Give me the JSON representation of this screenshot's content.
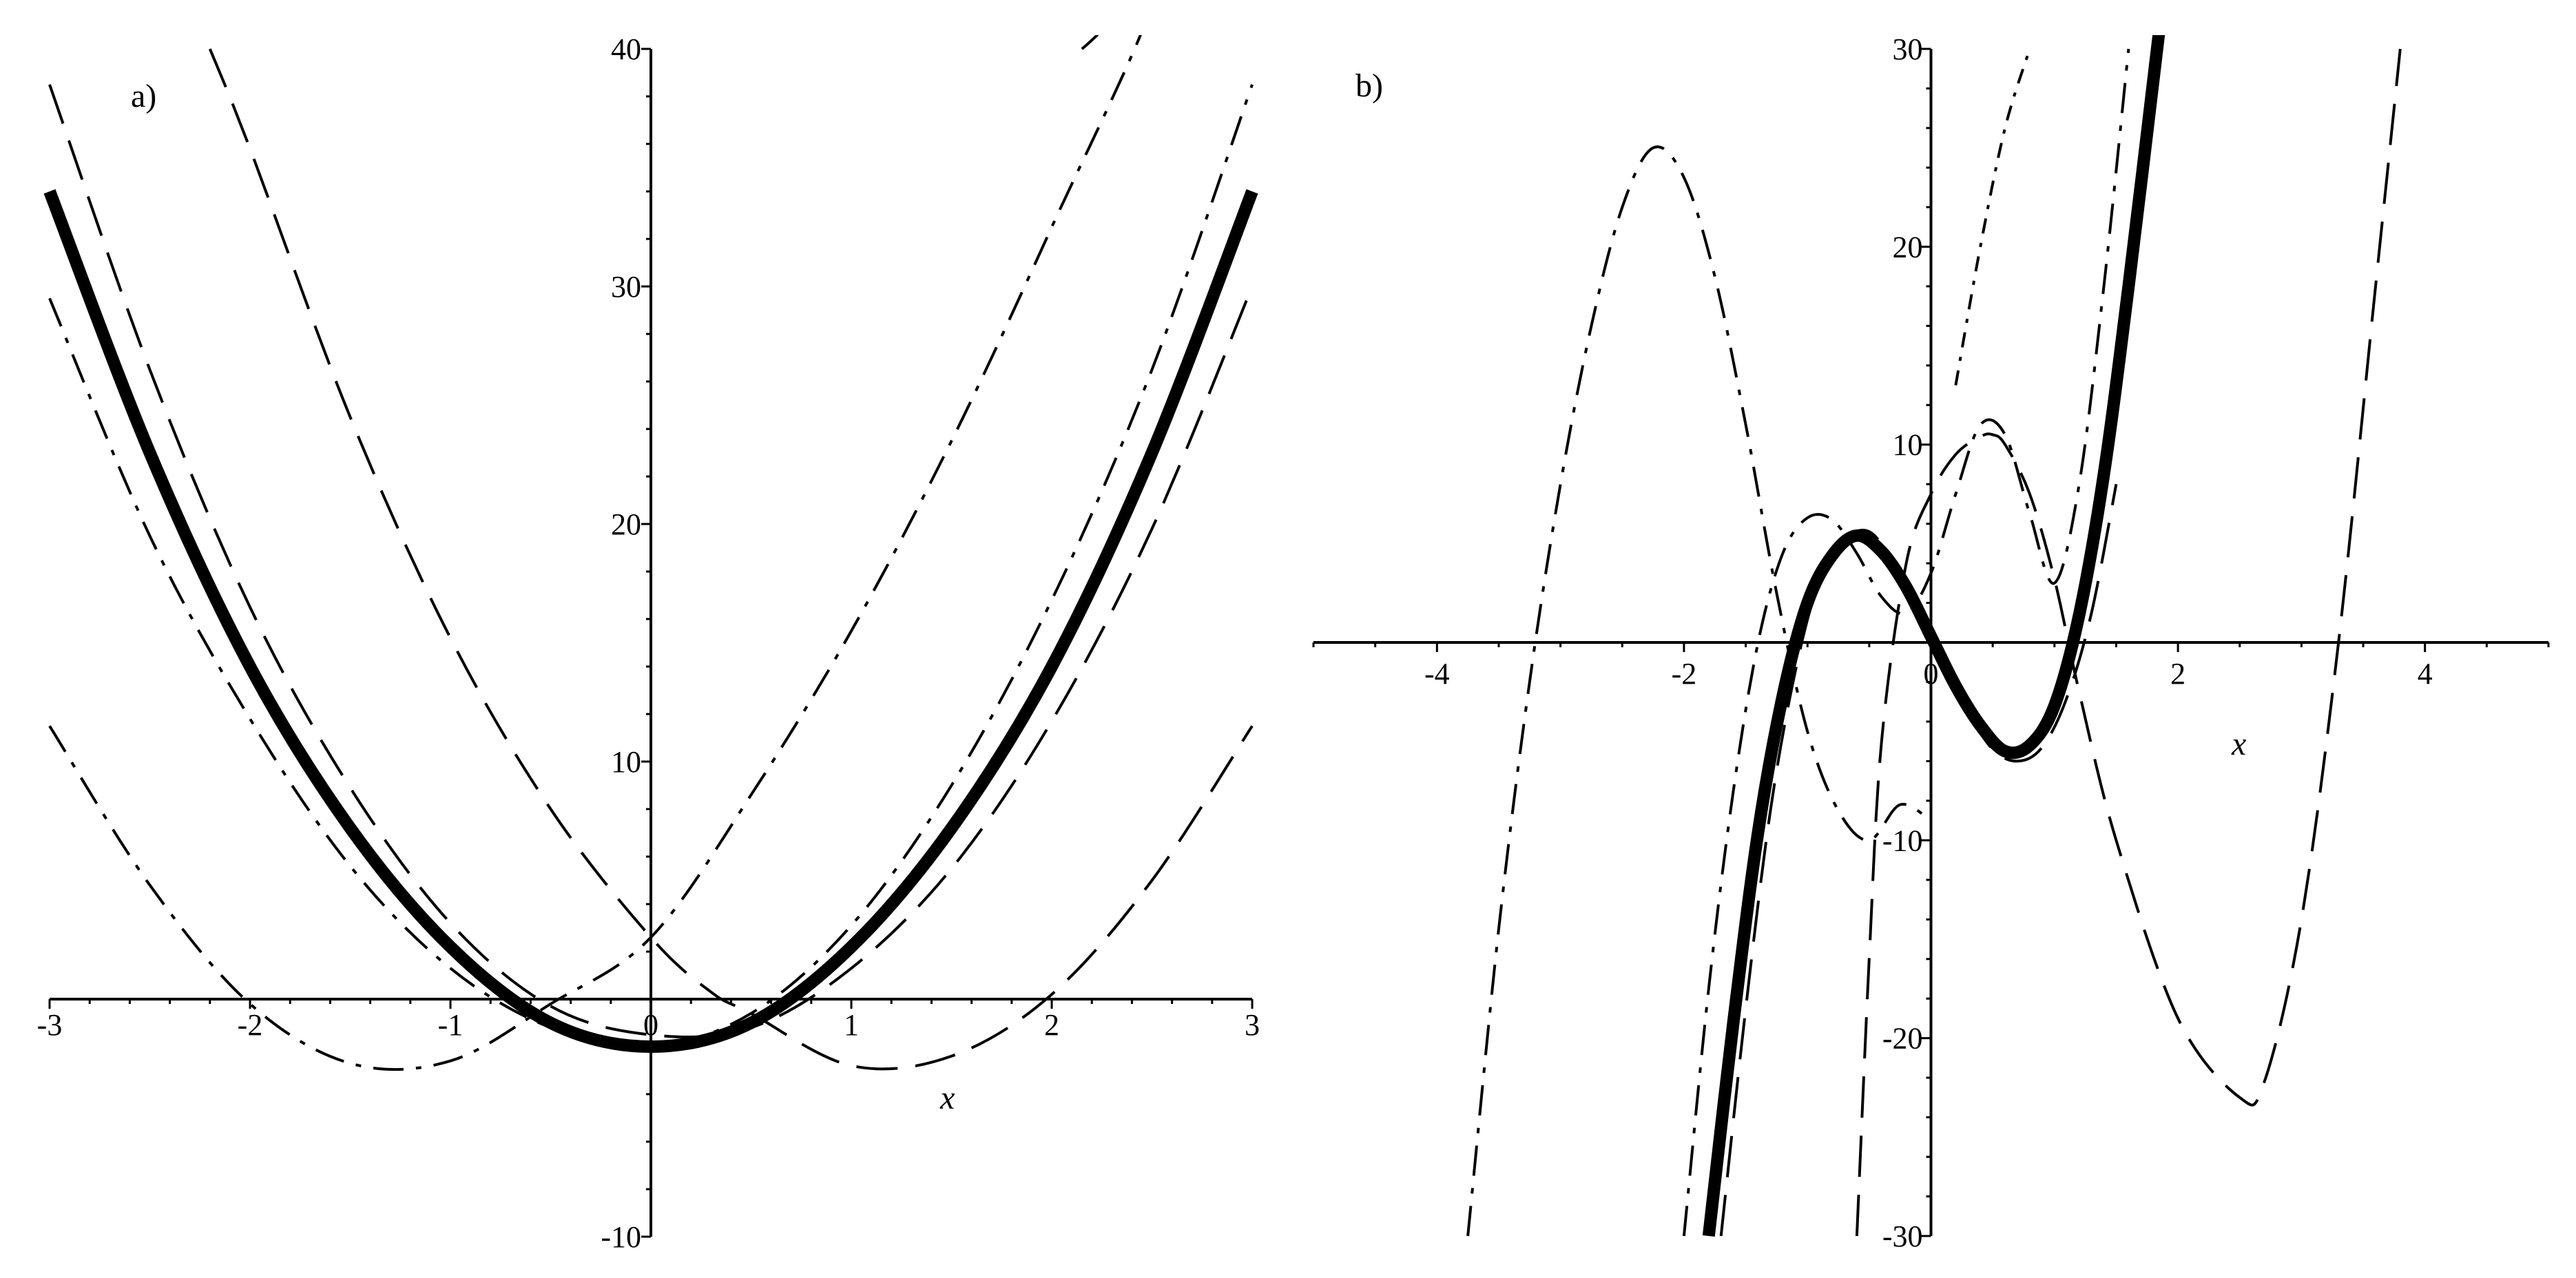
{
  "chart_data": [
    {
      "type": "line",
      "panel_label": "a)",
      "xlabel": "x",
      "ylabel": "",
      "xlim": [
        -3,
        3
      ],
      "ylim": [
        -10,
        40
      ],
      "x_ticks": [
        -3,
        -2,
        -1,
        0,
        1,
        2,
        3
      ],
      "x_tick_labels": [
        "-3",
        "-2",
        "-1",
        "0",
        "1",
        "2",
        "3"
      ],
      "y_ticks": [
        -10,
        10,
        20,
        30,
        40
      ],
      "y_tick_labels": [
        "-10",
        "10",
        "20",
        "30",
        "40"
      ],
      "grid": false,
      "legend": "none",
      "series": [
        {
          "style": "thick-solid",
          "x": [
            -3,
            -2.5,
            -2,
            -1.5,
            -1,
            -0.5,
            0,
            0.5,
            1,
            1.5,
            2,
            2.5,
            3
          ],
          "y": [
            34,
            23,
            14,
            7.2,
            2.2,
            -1,
            -2,
            -1,
            2.2,
            7.2,
            14,
            23,
            34
          ]
        },
        {
          "style": "long-dash",
          "x": [
            -3,
            -2.5,
            -2,
            -1.5,
            -1,
            -0.5,
            0,
            0.5,
            1,
            1.5,
            2,
            2.5,
            3
          ],
          "y": [
            38.5,
            26.5,
            16.5,
            8.9,
            3.2,
            -0.3,
            -1.5,
            -1.2,
            1.3,
            5.5,
            11.7,
            19.8,
            30
          ]
        },
        {
          "style": "long-dash",
          "x": [
            -2.2,
            -2,
            -1.5,
            -1,
            -0.5,
            0,
            0.3,
            0.5,
            1,
            1.5,
            2,
            2.5,
            3
          ],
          "y": [
            40,
            35.8,
            24.5,
            15.2,
            8,
            2.6,
            0.3,
            -0.6,
            -2.8,
            -2.4,
            0.2,
            5,
            11.5
          ]
        },
        {
          "style": "dash-dot",
          "x": [
            -3,
            -2.5,
            -2,
            -1.5,
            -1,
            -0.5,
            0,
            0.5,
            1,
            1.5,
            2,
            2.5,
            3
          ],
          "y": [
            29.5,
            19.5,
            11.8,
            5.6,
            1.3,
            -1.2,
            -2,
            -0.6,
            3.1,
            9,
            16.8,
            26.5,
            38.5
          ]
        },
        {
          "style": "dash-dot",
          "x": [
            -3,
            -2.5,
            -2,
            -1.5,
            -1,
            -0.5,
            0,
            0.5,
            1,
            1.5,
            2,
            2.5,
            2.15
          ],
          "y": [
            11.5,
            4.8,
            -0.2,
            -2.7,
            -2.6,
            -0.2,
            2.6,
            8.6,
            15.5,
            23.5,
            32.5,
            42,
            40
          ]
        }
      ]
    },
    {
      "type": "line",
      "panel_label": "b)",
      "xlabel": "x",
      "ylabel": "",
      "xlim": [
        -5,
        5
      ],
      "ylim": [
        -30,
        30
      ],
      "x_ticks": [
        -4,
        -2,
        0,
        2,
        4
      ],
      "x_tick_labels": [
        "-4",
        "-2",
        "0",
        "2",
        "4"
      ],
      "y_ticks": [
        -30,
        -20,
        -10,
        10,
        20,
        30
      ],
      "y_tick_labels": [
        "-30",
        "-20",
        "-10",
        "10",
        "20",
        "30"
      ],
      "grid": false,
      "legend": "none",
      "series": [
        {
          "style": "thick-solid",
          "x": [
            -1.8,
            -1.6,
            -1.4,
            -1.2,
            -1,
            -0.8,
            -0.6,
            -0.4,
            -0.2,
            0,
            0.2,
            0.4,
            0.6,
            0.8,
            1,
            1.2,
            1.4,
            1.6,
            1.85
          ],
          "y": [
            -30,
            -19.2,
            -9.6,
            -2.7,
            2,
            4.4,
            5.4,
            4.6,
            2.8,
            0.3,
            -2.2,
            -4.2,
            -5.5,
            -5.2,
            -3.2,
            1.4,
            8.5,
            18,
            31
          ]
        },
        {
          "style": "long-dash",
          "x": [
            -1.7,
            -1.5,
            -1.3,
            -1.1,
            -0.9,
            -0.7,
            -0.5,
            -0.3,
            -0.1,
            0.1,
            0.3,
            0.5,
            0.7,
            0.9,
            1.1,
            1.3,
            1.5
          ],
          "y": [
            -30,
            -18.5,
            -8.5,
            -1.5,
            3.2,
            5.2,
            5.6,
            4,
            1.7,
            -0.8,
            -3.5,
            -5.4,
            -6,
            -5.3,
            -2.8,
            1.5,
            8
          ]
        },
        {
          "style": "long-dash",
          "x": [
            -0.6,
            -0.5,
            -0.4,
            -0.2,
            0,
            0.2,
            0.4,
            0.5,
            0.6,
            0.8,
            1,
            1.2,
            1.5,
            2,
            2.5,
            2.7,
            3,
            3.3,
            3.6,
            3.8
          ],
          "y": [
            -30,
            -16,
            -5,
            4,
            7.5,
            9.5,
            10.4,
            10.5,
            10,
            7.5,
            3.2,
            -2.5,
            -10,
            -19,
            -23,
            -22.2,
            -14,
            0,
            18,
            30
          ]
        },
        {
          "style": "dash-dot",
          "x": [
            -3.75,
            -3.5,
            -3.25,
            -3,
            -2.75,
            -2.5,
            -2.25,
            -2,
            -1.75,
            -1.5,
            -1.25,
            -1,
            -0.75,
            -0.5,
            -0.25,
            0
          ],
          "y": [
            -30,
            -14.5,
            -2,
            8,
            16,
            22,
            25,
            23.5,
            18.5,
            11,
            2.5,
            -4.5,
            -8.5,
            -10,
            -8.2,
            -9
          ]
        },
        {
          "style": "dash-dot",
          "x": [
            -2,
            -1.8,
            -1.6,
            -1.4,
            -1.2,
            -1,
            -0.8,
            -0.6,
            -0.4,
            -0.2,
            0,
            0.2,
            0.4,
            0.6,
            0.8,
            1,
            1.2,
            1.4,
            1.6
          ],
          "y": [
            -30,
            -17.5,
            -7.5,
            0,
            4.5,
            6.3,
            6.2,
            4.5,
            2.3,
            1.5,
            3.5,
            7.5,
            11,
            10.5,
            6.5,
            3,
            8,
            18,
            30
          ]
        },
        {
          "style": "short-dash-dot",
          "x": [
            0.2,
            0.4,
            0.6,
            0.8
          ],
          "y": [
            13,
            20,
            26,
            30
          ]
        }
      ]
    }
  ]
}
